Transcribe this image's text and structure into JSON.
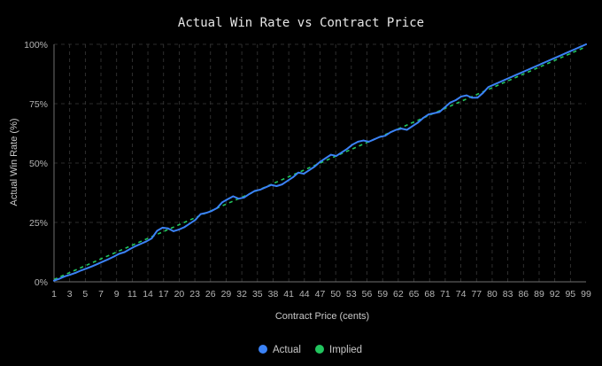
{
  "chart_data": {
    "type": "line",
    "title": "Actual Win Rate vs Contract Price",
    "xlabel": "Contract Price (cents)",
    "ylabel": "Actual Win Rate (%)",
    "xlim": [
      1,
      99
    ],
    "ylim": [
      0,
      100
    ],
    "x_tick_labels": [
      "1",
      "3",
      "5",
      "7",
      "9",
      "11",
      "14",
      "17",
      "20",
      "23",
      "26",
      "29",
      "32",
      "35",
      "38",
      "41",
      "44",
      "47",
      "50",
      "53",
      "56",
      "59",
      "62",
      "65",
      "68",
      "71",
      "74",
      "77",
      "80",
      "83",
      "86",
      "89",
      "92",
      "95",
      "99"
    ],
    "y_tick_labels": [
      "0%",
      "25%",
      "50%",
      "75%",
      "100%"
    ],
    "y_tick_values": [
      0,
      25,
      50,
      75,
      100
    ],
    "grid": true,
    "legend_position": "bottom-center",
    "colors": {
      "background": "#000000",
      "actual": "#3b82f6",
      "implied": "#22c55e",
      "grid": "#3a3a3a",
      "axis": "#707070"
    },
    "series": [
      {
        "name": "Actual",
        "style": "solid",
        "x": [
          1,
          2,
          3,
          4,
          5,
          6,
          7,
          8,
          9,
          10,
          11,
          12,
          13,
          14,
          15,
          16,
          17,
          18,
          19,
          20,
          21,
          22,
          23,
          24,
          25,
          26,
          27,
          28,
          29,
          30,
          31,
          32,
          33,
          34,
          35,
          36,
          37,
          38,
          39,
          40,
          41,
          42,
          43,
          44,
          45,
          46,
          47,
          48,
          49,
          50,
          51,
          52,
          53,
          54,
          55,
          56,
          57,
          58,
          59,
          60,
          61,
          62,
          63,
          64,
          65,
          66,
          67,
          68,
          69,
          70,
          71,
          72,
          73,
          74,
          75,
          76,
          77,
          78,
          79,
          80,
          81,
          82,
          83,
          84,
          85,
          86,
          87,
          88,
          89,
          90,
          91,
          92,
          93,
          94,
          95,
          96,
          97,
          98,
          99
        ],
        "values": [
          0.5,
          1.3,
          2.3,
          3.0,
          3.8,
          4.8,
          5.6,
          6.5,
          7.5,
          8.5,
          9.5,
          10.6,
          11.8,
          12.5,
          13.8,
          15.0,
          16.0,
          17.0,
          18.3,
          21.5,
          22.8,
          22.5,
          21.3,
          22.0,
          23.0,
          24.5,
          26.0,
          28.5,
          29.0,
          29.8,
          31.0,
          33.5,
          34.8,
          36.0,
          35.0,
          35.5,
          37.0,
          38.3,
          38.8,
          39.8,
          40.8,
          40.3,
          41.0,
          42.5,
          44.0,
          46.0,
          45.5,
          47.0,
          48.5,
          50.5,
          52.0,
          53.5,
          53.0,
          54.5,
          56.0,
          57.8,
          59.0,
          59.5,
          59.0,
          60.0,
          61.0,
          61.5,
          63.0,
          64.0,
          64.5,
          64.0,
          65.5,
          67.0,
          69.0,
          70.5,
          71.0,
          71.5,
          73.5,
          75.5,
          76.5,
          78.0,
          78.5,
          77.5,
          77.5,
          79.5,
          82.0,
          83.0,
          84.0,
          85.0,
          86.0,
          87.0,
          88.0,
          89.0,
          90.0,
          91.0,
          92.0,
          93.0,
          94.0,
          95.0,
          96.0,
          97.0,
          98.0,
          99.0,
          100.0
        ]
      },
      {
        "name": "Implied",
        "style": "dashed",
        "x": [
          1,
          99
        ],
        "values": [
          1,
          99
        ]
      }
    ]
  }
}
